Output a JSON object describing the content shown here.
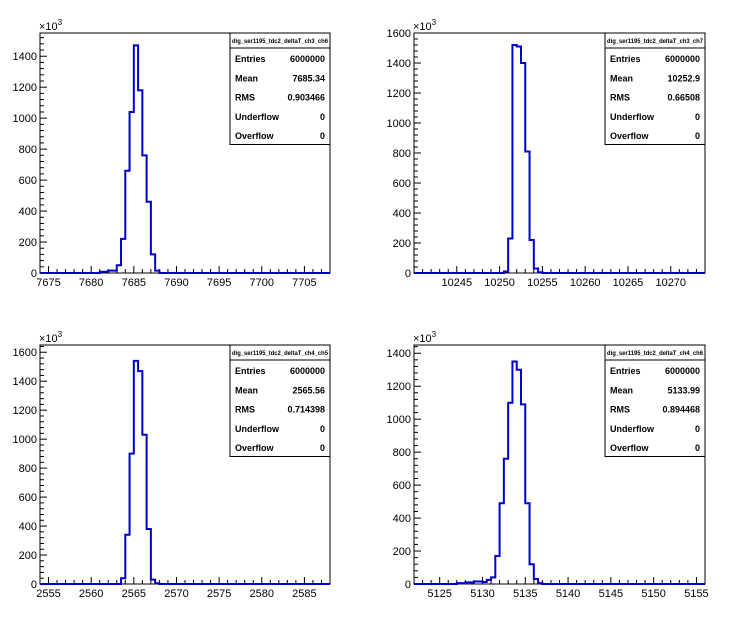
{
  "chart_data": [
    {
      "type": "bar",
      "title": "dig_ser1195_tdc2_deltaT_ch3_ch6",
      "xlim": [
        7674,
        7708
      ],
      "ylim": [
        0,
        1550
      ],
      "y_exponent_label": "×10",
      "y_exponent": "3",
      "xticks": [
        7675,
        7680,
        7685,
        7690,
        7695,
        7700,
        7705
      ],
      "yticks": [
        0,
        200,
        400,
        600,
        800,
        1000,
        1200,
        1400
      ],
      "bin_edges": [
        7681,
        7682,
        7683,
        7683.5,
        7684,
        7684.5,
        7685,
        7685.5,
        7686,
        7686.5,
        7687,
        7687.5,
        7688
      ],
      "counts": [
        8,
        15,
        50,
        220,
        660,
        1040,
        1470,
        1180,
        760,
        460,
        120,
        15
      ],
      "stats": [
        {
          "label": "Entries",
          "value": "6000000"
        },
        {
          "label": "Mean",
          "value": "7685.34"
        },
        {
          "label": "RMS",
          "value": "0.903466"
        },
        {
          "label": "Underflow",
          "value": "0"
        },
        {
          "label": "Overflow",
          "value": "0"
        }
      ]
    },
    {
      "type": "bar",
      "title": "dig_ser1195_tdc2_deltaT_ch3_ch7",
      "xlim": [
        10240,
        10274
      ],
      "ylim": [
        0,
        1600
      ],
      "y_exponent_label": "×10",
      "y_exponent": "3",
      "xticks": [
        10245,
        10250,
        10255,
        10260,
        10265,
        10270
      ],
      "yticks": [
        0,
        200,
        400,
        600,
        800,
        1000,
        1200,
        1400,
        1600
      ],
      "bin_edges": [
        10250.5,
        10251,
        10251.5,
        10252,
        10252.5,
        10253,
        10253.5,
        10254,
        10254.5,
        10255
      ],
      "counts": [
        10,
        230,
        1520,
        1510,
        1400,
        810,
        220,
        30,
        5
      ],
      "stats": [
        {
          "label": "Entries",
          "value": "6000000"
        },
        {
          "label": "Mean",
          "value": "10252.9"
        },
        {
          "label": "RMS",
          "value": "0.66508"
        },
        {
          "label": "Underflow",
          "value": "0"
        },
        {
          "label": "Overflow",
          "value": "0"
        }
      ]
    },
    {
      "type": "bar",
      "title": "dig_ser1195_tdc2_deltaT_ch4_ch5",
      "xlim": [
        2554,
        2588
      ],
      "ylim": [
        0,
        1650
      ],
      "y_exponent_label": "×10",
      "y_exponent": "3",
      "xticks": [
        2555,
        2560,
        2565,
        2570,
        2575,
        2580,
        2585
      ],
      "yticks": [
        0,
        200,
        400,
        600,
        800,
        1000,
        1200,
        1400,
        1600
      ],
      "bin_edges": [
        2563.5,
        2564,
        2564.5,
        2565,
        2565.5,
        2566,
        2566.5,
        2567,
        2567.5,
        2568
      ],
      "counts": [
        40,
        340,
        900,
        1540,
        1470,
        1030,
        380,
        30,
        5
      ],
      "stats": [
        {
          "label": "Entries",
          "value": "6000000"
        },
        {
          "label": "Mean",
          "value": "2565.56"
        },
        {
          "label": "RMS",
          "value": "0.714398"
        },
        {
          "label": "Underflow",
          "value": "0"
        },
        {
          "label": "Overflow",
          "value": "0"
        }
      ]
    },
    {
      "type": "bar",
      "title": "dig_ser1195_tdc2_deltaT_ch4_ch6",
      "xlim": [
        5122,
        5156
      ],
      "ylim": [
        0,
        1450
      ],
      "y_exponent_label": "×10",
      "y_exponent": "3",
      "xticks": [
        5125,
        5130,
        5135,
        5140,
        5145,
        5150,
        5155
      ],
      "yticks": [
        0,
        200,
        400,
        600,
        800,
        1000,
        1200,
        1400
      ],
      "bin_edges": [
        5127,
        5128,
        5129,
        5130,
        5130.5,
        5131,
        5131.5,
        5132,
        5132.5,
        5133,
        5133.5,
        5134,
        5134.5,
        5135,
        5135.5,
        5136,
        5136.5,
        5137
      ],
      "counts": [
        5,
        10,
        15,
        12,
        25,
        40,
        170,
        490,
        760,
        1100,
        1350,
        1300,
        1090,
        490,
        120,
        30,
        5
      ],
      "stats": [
        {
          "label": "Entries",
          "value": "6000000"
        },
        {
          "label": "Mean",
          "value": "5133.99"
        },
        {
          "label": "RMS",
          "value": "0.894468"
        },
        {
          "label": "Underflow",
          "value": "0"
        },
        {
          "label": "Overflow",
          "value": "0"
        }
      ]
    }
  ]
}
